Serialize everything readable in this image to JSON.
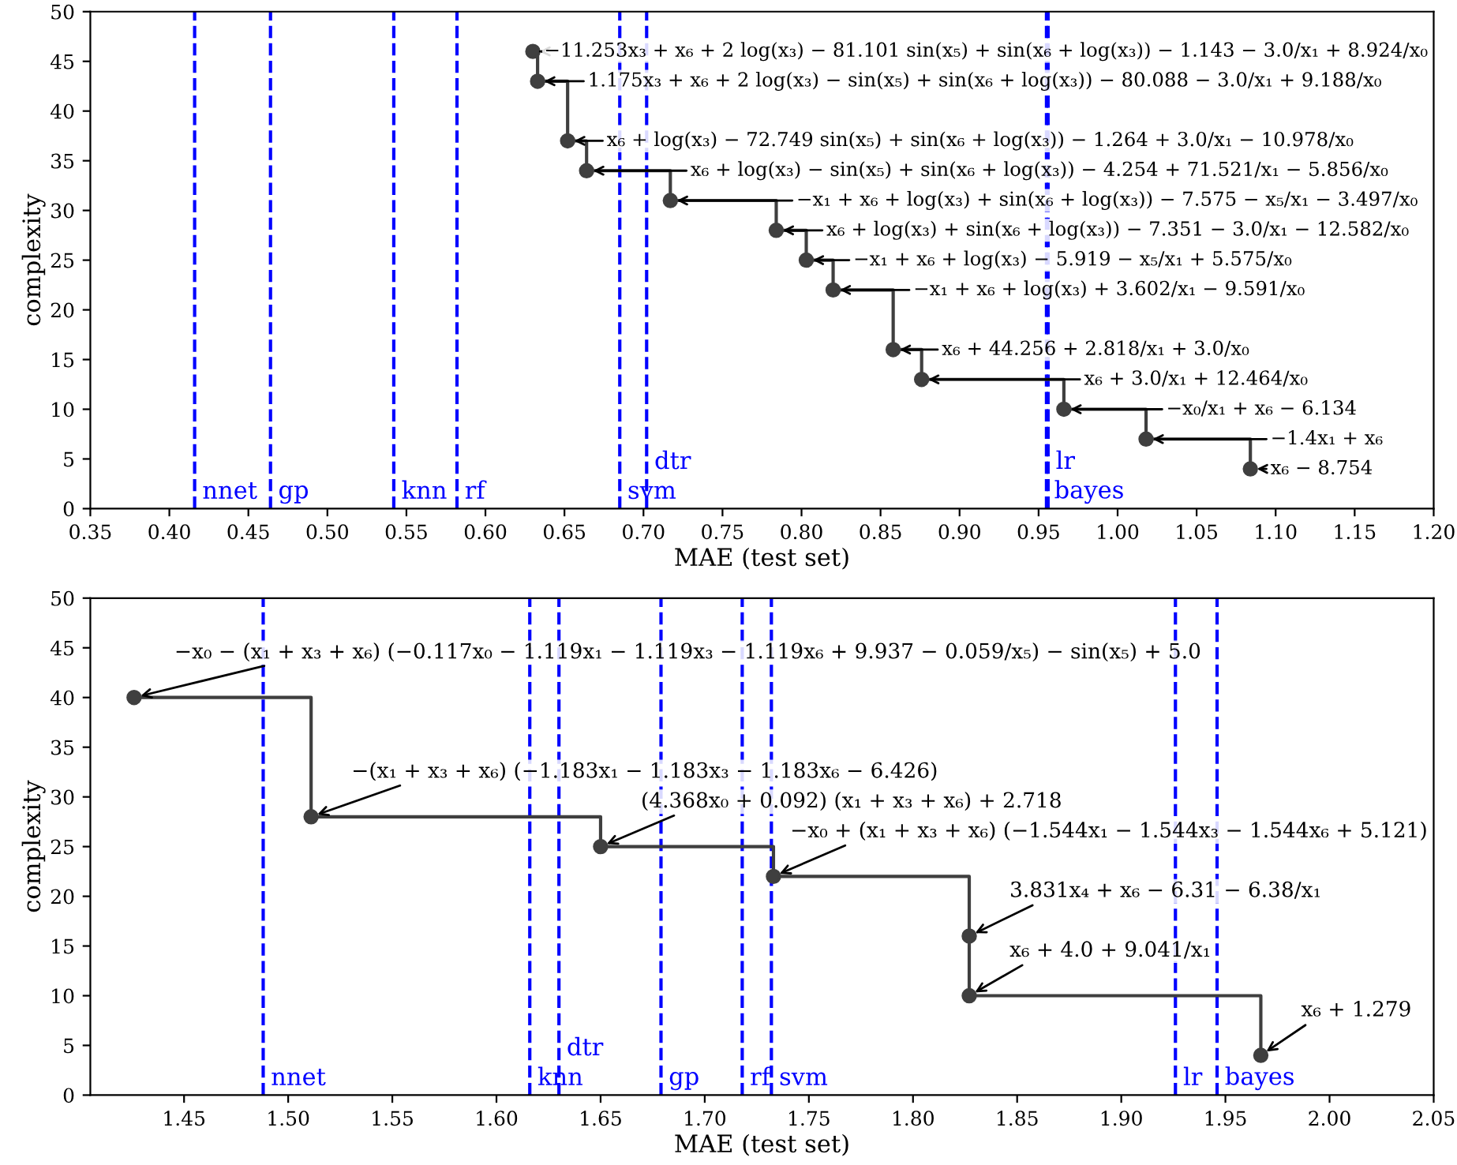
{
  "chart_data": [
    {
      "type": "step",
      "marker": "circle",
      "xlabel": "MAE (test set)",
      "ylabel": "complexity",
      "x": [
        0.63,
        0.633,
        0.652,
        0.664,
        0.717,
        0.784,
        0.803,
        0.82,
        0.858,
        0.876,
        0.966,
        1.018,
        1.084
      ],
      "series": [
        {
          "color": "#3f3f3f",
          "values": [
            46,
            43,
            37,
            34,
            31,
            28,
            25,
            22,
            16,
            13,
            10,
            7,
            4
          ]
        }
      ],
      "xlim": [
        0.35,
        1.2
      ],
      "ylim": [
        0,
        50
      ],
      "xticks": [
        0.35,
        {
          "value": 0.4,
          "label": "0.40"
        },
        0.45,
        {
          "value": 0.5,
          "label": "0.50"
        },
        0.55,
        {
          "value": 0.6,
          "label": "0.60"
        },
        0.65,
        {
          "value": 0.7,
          "label": "0.70"
        },
        0.75,
        {
          "value": 0.8,
          "label": "0.80"
        },
        0.85,
        {
          "value": 0.9,
          "label": "0.90"
        },
        0.95,
        {
          "value": 1.0,
          "label": "1.00"
        },
        1.05,
        {
          "value": 1.1,
          "label": "1.10"
        },
        1.15,
        {
          "value": 1.2,
          "label": "1.20"
        }
      ],
      "yticks": [
        0,
        5,
        10,
        15,
        20,
        25,
        30,
        35,
        40,
        45,
        50
      ],
      "ref_lines": [
        {
          "axis": "x",
          "value": 0.416,
          "label": "nnet",
          "color": "#0000ff",
          "line_style": "dashed"
        },
        {
          "axis": "x",
          "value": 0.464,
          "label": "gp",
          "color": "#0000ff",
          "line_style": "dashed"
        },
        {
          "axis": "x",
          "value": 0.542,
          "label": "knn",
          "color": "#0000ff",
          "line_style": "dashed"
        },
        {
          "axis": "x",
          "value": 0.582,
          "label": "rf",
          "color": "#0000ff",
          "line_style": "dashed"
        },
        {
          "axis": "x",
          "value": 0.685,
          "label": "svm",
          "color": "#0000ff",
          "line_style": "dashed"
        },
        {
          "axis": "x",
          "value": 0.702,
          "label": "dtr",
          "color": "#0000ff",
          "line_style": "dashed"
        },
        {
          "axis": "x",
          "value": 0.955,
          "label": "bayes",
          "color": "#0000ff",
          "line_style": "dashed"
        },
        {
          "axis": "x",
          "value": 0.956,
          "label": "lr",
          "color": "#0000ff",
          "line_style": "dashed"
        }
      ],
      "annotations": [
        {
          "text": "−11.253x₃ + x₆ + 2 log(x₃) − 81.101 sin(x₅) + sin(x₆ + log(x₃)) − 1.143 − 3.0/x₁ + 8.924/x₀",
          "x": 0.63,
          "y": 46
        },
        {
          "text": "1.175x₃ + x₆ + 2 log(x₃) − sin(x₅) + sin(x₆ + log(x₃)) − 80.088 − 3.0/x₁ + 9.188/x₀",
          "x": 0.633,
          "y": 43
        },
        {
          "text": "x₆ + log(x₃) − 72.749 sin(x₅) + sin(x₆ + log(x₃)) − 1.264 + 3.0/x₁ − 10.978/x₀",
          "x": 0.652,
          "y": 37
        },
        {
          "text": "x₆ + log(x₃) − sin(x₅) + sin(x₆ + log(x₃)) − 4.254 + 71.521/x₁ − 5.856/x₀",
          "x": 0.664,
          "y": 34
        },
        {
          "text": "−x₁ + x₆ + log(x₃) + sin(x₆ + log(x₃)) − 7.575 − x₅/x₁ − 3.497/x₀",
          "x": 0.717,
          "y": 31
        },
        {
          "text": "x₆ + log(x₃) + sin(x₆ + log(x₃)) − 7.351 − 3.0/x₁ − 12.582/x₀",
          "x": 0.784,
          "y": 28
        },
        {
          "text": "−x₁ + x₆ + log(x₃) − 5.919 − x₅/x₁ + 5.575/x₀",
          "x": 0.803,
          "y": 25
        },
        {
          "text": "−x₁ + x₆ + log(x₃) + 3.602/x₁ − 9.591/x₀",
          "x": 0.82,
          "y": 22
        },
        {
          "text": "x₆ + 44.256 + 2.818/x₁ + 3.0/x₀",
          "x": 0.858,
          "y": 16
        },
        {
          "text": "x₆ + 3.0/x₁ + 12.464/x₀",
          "x": 0.876,
          "y": 13
        },
        {
          "text": "−x₀/x₁ + x₆ − 6.134",
          "x": 0.966,
          "y": 10
        },
        {
          "text": "−1.4x₁ + x₆",
          "x": 1.018,
          "y": 7
        },
        {
          "text": "x₆ − 8.754",
          "x": 1.084,
          "y": 4
        }
      ]
    },
    {
      "type": "step",
      "marker": "circle",
      "xlabel": "MAE (test set)",
      "ylabel": "complexity",
      "x": [
        1.426,
        1.511,
        1.65,
        1.733,
        1.827,
        1.827,
        1.967
      ],
      "series": [
        {
          "color": "#3f3f3f",
          "values": [
            40,
            28,
            25,
            22,
            16,
            10,
            4
          ]
        }
      ],
      "xlim": [
        1.405,
        2.05
      ],
      "ylim": [
        0,
        50
      ],
      "xticks": [
        1.45,
        {
          "value": 1.5,
          "label": "1.50"
        },
        1.55,
        {
          "value": 1.6,
          "label": "1.60"
        },
        1.65,
        {
          "value": 1.7,
          "label": "1.70"
        },
        1.75,
        {
          "value": 1.8,
          "label": "1.80"
        },
        1.85,
        {
          "value": 1.9,
          "label": "1.90"
        },
        1.95,
        {
          "value": 2.0,
          "label": "2.00"
        },
        2.05
      ],
      "yticks": [
        0,
        5,
        10,
        15,
        20,
        25,
        30,
        35,
        40,
        45,
        50
      ],
      "ref_lines": [
        {
          "axis": "x",
          "value": 1.488,
          "label": "nnet",
          "color": "#0000ff",
          "line_style": "dashed"
        },
        {
          "axis": "x",
          "value": 1.616,
          "label": "knn",
          "color": "#0000ff",
          "line_style": "dashed"
        },
        {
          "axis": "x",
          "value": 1.63,
          "label": "dtr",
          "color": "#0000ff",
          "line_style": "dashed"
        },
        {
          "axis": "x",
          "value": 1.679,
          "label": "gp",
          "color": "#0000ff",
          "line_style": "dashed"
        },
        {
          "axis": "x",
          "value": 1.718,
          "label": "rf",
          "color": "#0000ff",
          "line_style": "dashed"
        },
        {
          "axis": "x",
          "value": 1.732,
          "label": "svm",
          "color": "#0000ff",
          "line_style": "dashed"
        },
        {
          "axis": "x",
          "value": 1.926,
          "label": "lr",
          "color": "#0000ff",
          "line_style": "dashed"
        },
        {
          "axis": "x",
          "value": 1.946,
          "label": "bayes",
          "color": "#0000ff",
          "line_style": "dashed"
        }
      ],
      "annotations": [
        {
          "text": "−x₀ − (x₁ + x₃ + x₆) (−0.117x₀ − 1.119x₁ − 1.119x₃ − 1.119x₆ + 9.937 − 0.059/x₅) − sin(x₅) + 5.0",
          "x": 1.426,
          "y": 40
        },
        {
          "text": "−(x₁ + x₃ + x₆) (−1.183x₁ − 1.183x₃ − 1.183x₆ − 6.426)",
          "x": 1.511,
          "y": 28
        },
        {
          "text": "(4.368x₀ + 0.092) (x₁ + x₃ + x₆) + 2.718",
          "x": 1.65,
          "y": 25
        },
        {
          "text": "−x₀ + (x₁ + x₃ + x₆) (−1.544x₁ − 1.544x₃ − 1.544x₆ + 5.121)",
          "x": 1.733,
          "y": 22
        },
        {
          "text": "3.831x₄ + x₆ − 6.31 − 6.38/x₁",
          "x": 1.827,
          "y": 16
        },
        {
          "text": "x₆ + 4.0 + 9.041/x₁",
          "x": 1.827,
          "y": 10
        },
        {
          "text": "x₆ + 1.279",
          "x": 1.967,
          "y": 4
        }
      ]
    }
  ]
}
